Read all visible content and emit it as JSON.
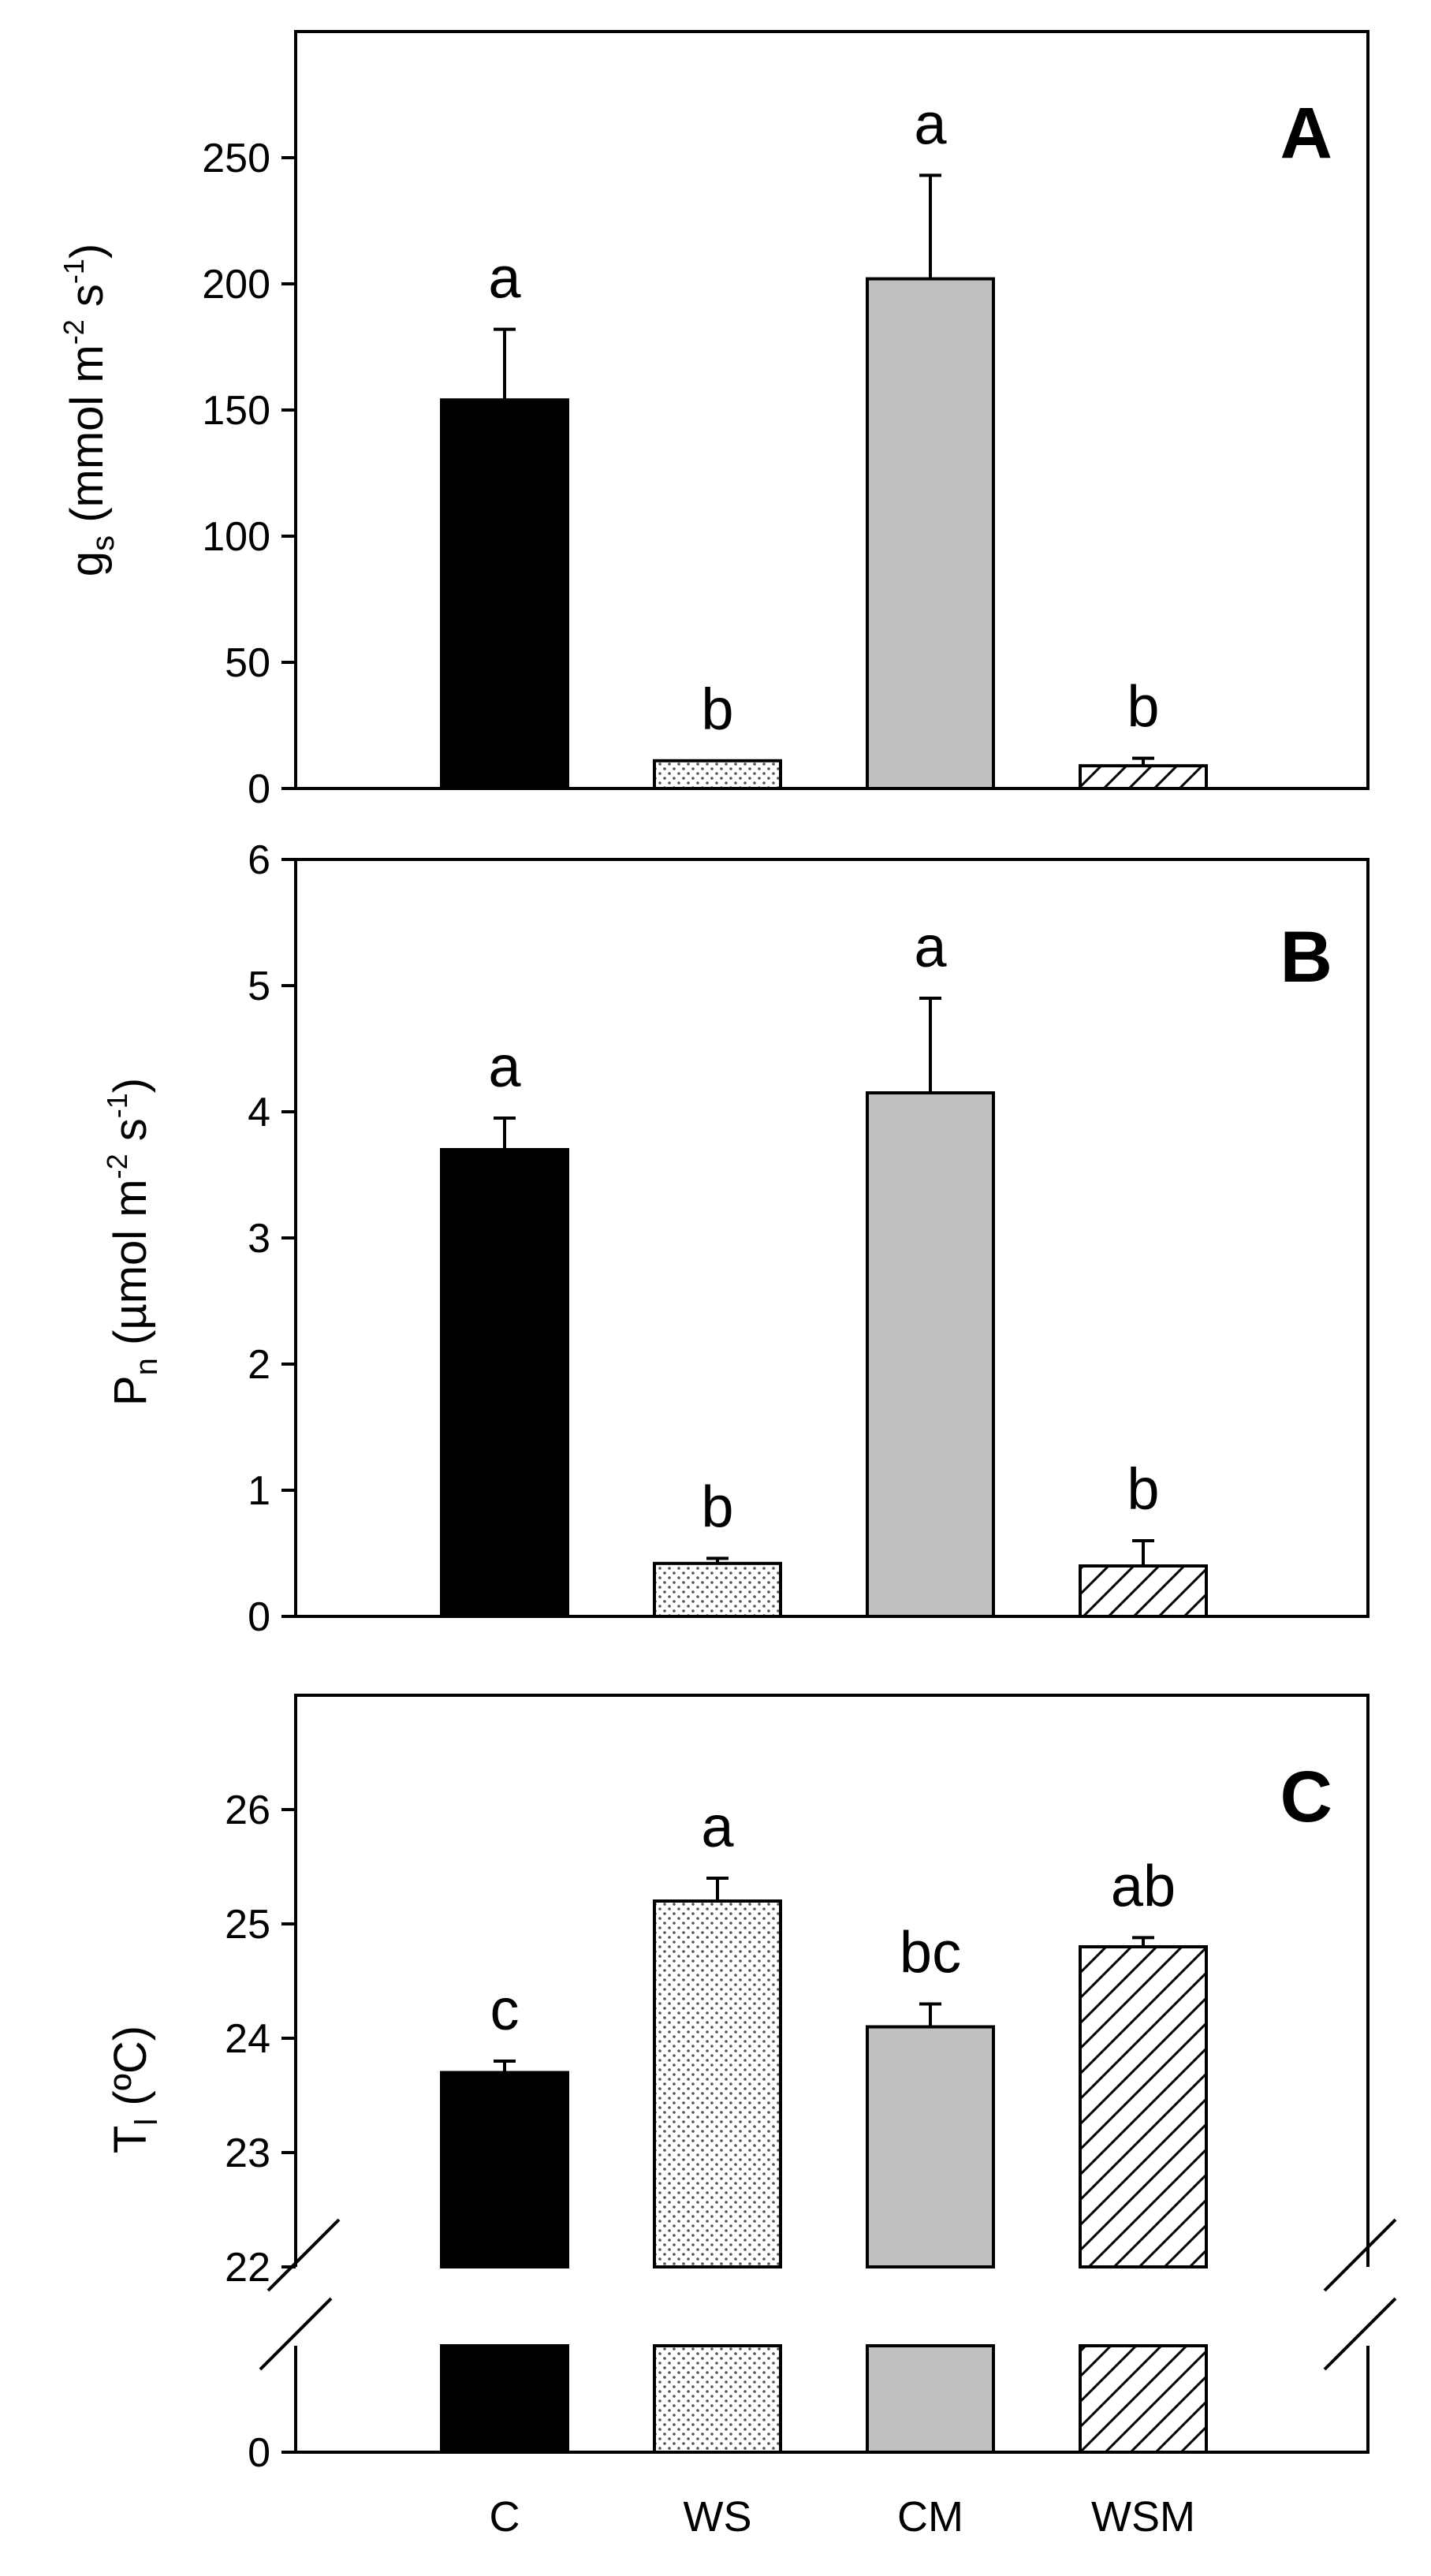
{
  "figure_text": {
    "panelA": {
      "letter": "A",
      "ylabel": {
        "a": "g",
        "b": "s",
        "c": " (mmol m",
        "d": "-2",
        "e": " s",
        "f": "-1",
        "g": ")"
      }
    },
    "panelB": {
      "letter": "B",
      "ylabel": {
        "a": "P",
        "b": "n",
        "c": " (µmol m",
        "d": "-2",
        "e": " s",
        "f": "-1",
        "g": ")"
      }
    },
    "panelC": {
      "letter": "C",
      "ylabel": {
        "a": "T",
        "b": "l",
        "c": " (ºC)"
      }
    }
  },
  "chart_data": [
    {
      "type": "bar",
      "panel": "A",
      "categories": [
        "C",
        "WS",
        "CM",
        "WSM"
      ],
      "values": [
        154,
        11,
        202,
        9
      ],
      "errors": [
        28,
        0,
        41,
        3
      ],
      "significance": [
        "a",
        "b",
        "a",
        "b"
      ],
      "ylabel": "gs (mmol m-2 s-1)",
      "ylim": [
        0,
        300
      ],
      "yticks": [
        "0",
        "50",
        "100",
        "150",
        "200",
        "250"
      ],
      "fills": [
        "#000000",
        "dots",
        "#c0c0c0",
        "hatch"
      ]
    },
    {
      "type": "bar",
      "panel": "B",
      "categories": [
        "C",
        "WS",
        "CM",
        "WSM"
      ],
      "values": [
        3.7,
        0.42,
        4.15,
        0.4
      ],
      "errors": [
        0.25,
        0.04,
        0.75,
        0.2
      ],
      "significance": [
        "a",
        "b",
        "a",
        "b"
      ],
      "ylabel": "Pn (µmol m-2 s-1)",
      "ylim": [
        0,
        6
      ],
      "yticks": [
        "0",
        "1",
        "2",
        "3",
        "4",
        "5",
        "6"
      ],
      "fills": [
        "#000000",
        "dots",
        "#c0c0c0",
        "hatch"
      ]
    },
    {
      "type": "bar",
      "panel": "C",
      "categories": [
        "C",
        "WS",
        "CM",
        "WSM"
      ],
      "values": [
        23.7,
        25.2,
        24.1,
        24.8
      ],
      "errors": [
        0.1,
        0.2,
        0.2,
        0.08
      ],
      "significance": [
        "c",
        "a",
        "bc",
        "ab"
      ],
      "ylabel": "Tl (ºC)",
      "ylim": [
        22,
        27
      ],
      "axis_break": true,
      "yticks": [
        "0",
        "22",
        "23",
        "24",
        "25",
        "26"
      ],
      "fills": [
        "#000000",
        "dots",
        "#c0c0c0",
        "hatch"
      ]
    }
  ]
}
